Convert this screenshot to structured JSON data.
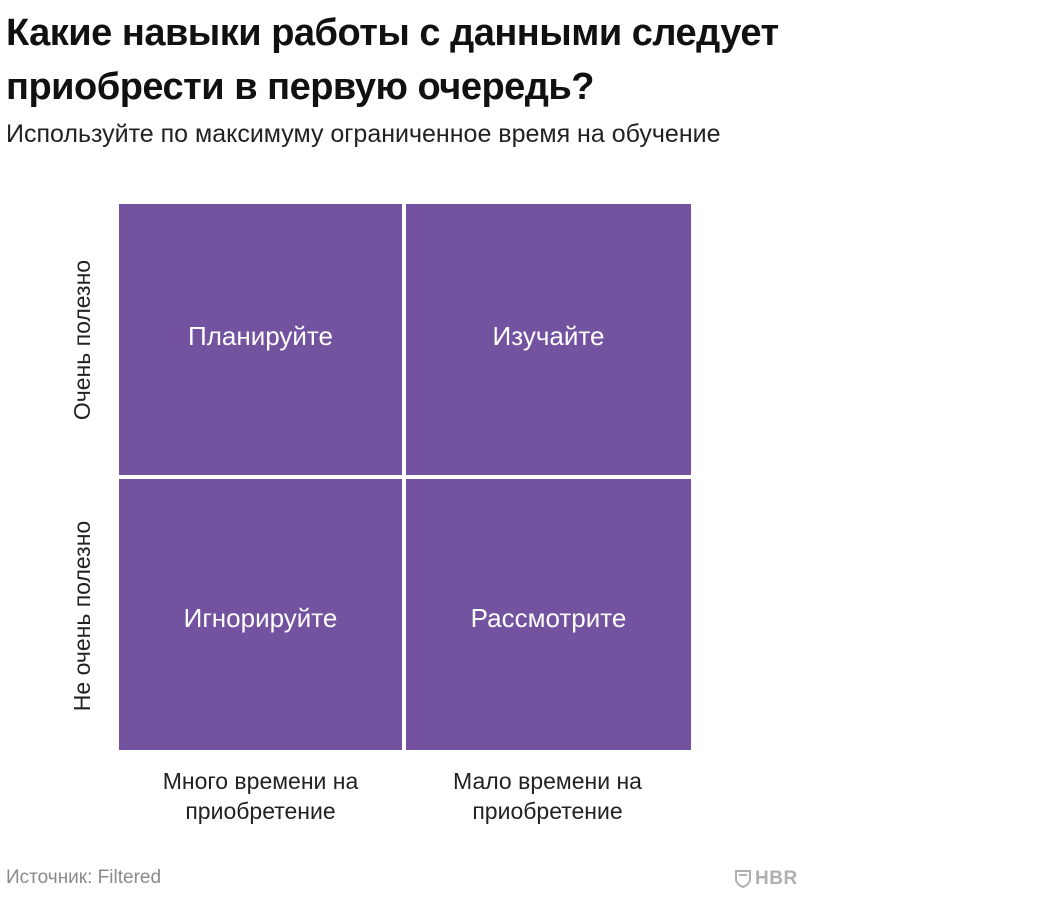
{
  "title": {
    "line1": "Какие навыки работы с данными следует",
    "line2": "приобрести в первую очередь?"
  },
  "subtitle": "Используйте по максимуму ограниченное время на обучение",
  "matrix": {
    "fill_color": "#7352a0",
    "cells": {
      "top_left": "Планируйте",
      "top_right": "Изучайте",
      "bottom_left": "Игнорируйте",
      "bottom_right": "Рассмотрите"
    }
  },
  "y_axis": {
    "top": "Очень полезно",
    "bottom": "Не очень полезно"
  },
  "x_axis": {
    "left": {
      "line1": "Много времени на",
      "line2": "приобретение"
    },
    "right": {
      "line1": "Мало времени на",
      "line2": "приобретение"
    }
  },
  "source": "Источник: Filtered",
  "logo": {
    "text": "HBR",
    "icon": "shield-icon"
  }
}
